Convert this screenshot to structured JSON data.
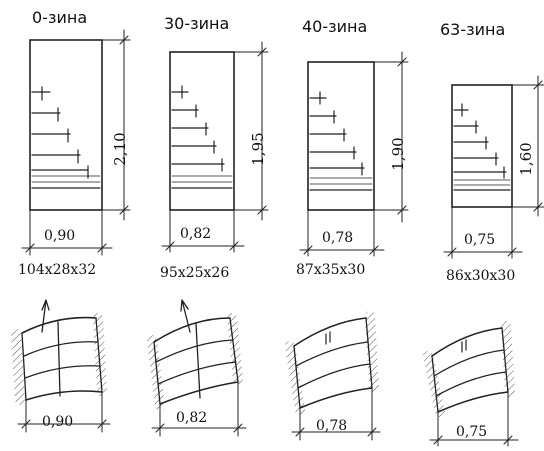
{
  "panels": [
    {
      "title": "0-зина",
      "width_label": "0,90",
      "height_label": "2,10",
      "size_label": "104x28x32",
      "plan_width_label": "0,90"
    },
    {
      "title": "30-зина",
      "width_label": "0,82",
      "height_label": "1,95",
      "size_label": "95x25x26",
      "plan_width_label": "0,82"
    },
    {
      "title": "40-зина",
      "width_label": "0,78",
      "height_label": "1,90",
      "size_label": "87x35x30",
      "plan_width_label": "0,78"
    },
    {
      "title": "63-зина",
      "width_label": "0,75",
      "height_label": "1,60",
      "size_label": "86x30x30",
      "plan_width_label": "0,75"
    }
  ],
  "line_color": "#222222"
}
